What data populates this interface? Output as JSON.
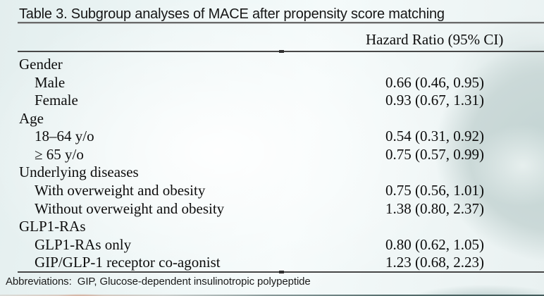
{
  "page": {
    "background": {
      "base_color": "#eef5f5",
      "watercolor_blob_color": "#c9d8d7",
      "accent_salmon": "#e09678",
      "accent_dark_teal": "#3a5554"
    }
  },
  "table": {
    "title": "Table 3. Subgroup analyses of MACE after propensity score matching",
    "column_header": "Hazard Ratio (95% CI)",
    "rows": [
      {
        "label": "Gender",
        "value": "",
        "indent": false
      },
      {
        "label": "Male",
        "value": "0.66 (0.46, 0.95)",
        "indent": true
      },
      {
        "label": "Female",
        "value": "0.93 (0.67, 1.31)",
        "indent": true
      },
      {
        "label": "Age",
        "value": "",
        "indent": false
      },
      {
        "label": "18–64 y/o",
        "value": "0.54 (0.31, 0.92)",
        "indent": true
      },
      {
        "label": "≥ 65 y/o",
        "value": "0.75 (0.57, 0.99)",
        "indent": true
      },
      {
        "label": "Underlying diseases",
        "value": "",
        "indent": false
      },
      {
        "label": "With overweight and obesity",
        "value": "0.75 (0.56, 1.01)",
        "indent": true
      },
      {
        "label": "Without overweight and obesity",
        "value": "1.38 (0.80, 2.37)",
        "indent": true
      },
      {
        "label": "GLP1-RAs",
        "value": "",
        "indent": false
      },
      {
        "label": "GLP1-RAs only",
        "value": "0.80 (0.62, 1.05)",
        "indent": true
      },
      {
        "label": "GIP/GLP-1 receptor co-agonist",
        "value": "1.23 (0.68, 2.23)",
        "indent": true
      }
    ],
    "footnote": "Abbreviations:  GIP, Glucose-dependent insulinotropic polypeptide"
  }
}
